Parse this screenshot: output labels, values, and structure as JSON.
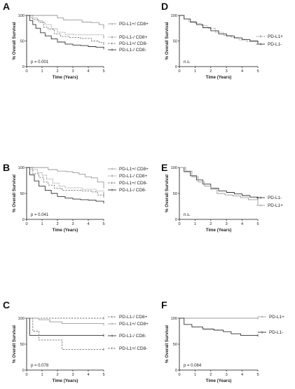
{
  "figure": {
    "panels": [
      {
        "label": "A",
        "stat": "p = 0.001"
      },
      {
        "label": "B",
        "stat": "p = 0.041"
      },
      {
        "label": "C",
        "stat": "p = 0.078"
      },
      {
        "label": "D",
        "stat": "n.s."
      },
      {
        "label": "E",
        "stat": "n.s."
      },
      {
        "label": "F",
        "stat": "p = 0.084"
      }
    ]
  },
  "chart_data": [
    {
      "panel": "A",
      "type": "line",
      "xlabel": "Time (Years)",
      "ylabel": "% Overall Survival",
      "xlim": [
        0,
        5
      ],
      "ylim": [
        0,
        100
      ],
      "xticks": [
        0,
        1,
        2,
        3,
        4,
        5
      ],
      "yticks": [
        0,
        50,
        100
      ],
      "annotation": "p = 0.001",
      "legend_placement": "right",
      "series": [
        {
          "name": "PD-L1+/ CD8+",
          "style": "solid-light",
          "points": [
            [
              0,
              100
            ],
            [
              1.5,
              100
            ],
            [
              2,
              95
            ],
            [
              2.4,
              91
            ],
            [
              3,
              91
            ],
            [
              3.6,
              87
            ],
            [
              4.2,
              86
            ],
            [
              4.7,
              82
            ],
            [
              5,
              76
            ]
          ]
        },
        {
          "name": "PD-L1-/ CD8+",
          "style": "dotted",
          "points": [
            [
              0,
              100
            ],
            [
              0.3,
              95
            ],
            [
              0.7,
              90
            ],
            [
              1,
              86
            ],
            [
              1.2,
              82
            ],
            [
              1.6,
              74
            ],
            [
              2,
              67
            ],
            [
              2.5,
              63
            ],
            [
              3,
              62
            ],
            [
              3.5,
              62
            ],
            [
              4,
              62
            ],
            [
              4.5,
              62
            ],
            [
              5,
              58
            ]
          ]
        },
        {
          "name": "PD-L1+/ CD8-",
          "style": "dashed",
          "points": [
            [
              0,
              100
            ],
            [
              0.4,
              92
            ],
            [
              0.8,
              87
            ],
            [
              1.1,
              77
            ],
            [
              1.4,
              73
            ],
            [
              1.8,
              64
            ],
            [
              2.2,
              59
            ],
            [
              2.8,
              57
            ],
            [
              3.5,
              55
            ],
            [
              4.2,
              50
            ],
            [
              4.7,
              47
            ],
            [
              5,
              45
            ]
          ]
        },
        {
          "name": "PD-L1-/ CD8-",
          "style": "solid",
          "points": [
            [
              0,
              100
            ],
            [
              0.2,
              90
            ],
            [
              0.4,
              82
            ],
            [
              0.6,
              75
            ],
            [
              0.9,
              66
            ],
            [
              1.2,
              60
            ],
            [
              1.6,
              54
            ],
            [
              2,
              48
            ],
            [
              2.5,
              44
            ],
            [
              3,
              42
            ],
            [
              3.5,
              41
            ],
            [
              4,
              39
            ],
            [
              4.5,
              38
            ],
            [
              5,
              36
            ]
          ]
        }
      ]
    },
    {
      "panel": "B",
      "type": "line",
      "xlabel": "Time (Years)",
      "ylabel": "% Overall Survival",
      "xlim": [
        0,
        5
      ],
      "ylim": [
        0,
        100
      ],
      "xticks": [
        0,
        1,
        2,
        3,
        4,
        5
      ],
      "yticks": [
        0,
        50,
        100
      ],
      "annotation": "p = 0.041",
      "legend_placement": "right",
      "series": [
        {
          "name": "PD-L1+/ CD8+",
          "style": "solid-light",
          "points": [
            [
              0,
              100
            ],
            [
              1,
              100
            ],
            [
              1.4,
              96
            ],
            [
              2,
              93
            ],
            [
              2.6,
              92
            ],
            [
              3,
              90
            ],
            [
              3.4,
              87
            ],
            [
              3.8,
              82
            ],
            [
              4.2,
              80
            ],
            [
              4.6,
              72
            ],
            [
              5,
              62
            ]
          ]
        },
        {
          "name": "PD-L1-/ CD8+",
          "style": "dotted",
          "points": [
            [
              0,
              100
            ],
            [
              0.3,
              96
            ],
            [
              0.7,
              90
            ],
            [
              1,
              85
            ],
            [
              1.3,
              78
            ],
            [
              1.7,
              70
            ],
            [
              2.1,
              64
            ],
            [
              2.5,
              61
            ],
            [
              3,
              61
            ],
            [
              3.6,
              58
            ],
            [
              4,
              58
            ],
            [
              4.5,
              55
            ],
            [
              5,
              50
            ]
          ]
        },
        {
          "name": "PD-L1+/ CD8-",
          "style": "dashed",
          "points": [
            [
              0,
              100
            ],
            [
              0.4,
              88
            ],
            [
              0.8,
              81
            ],
            [
              1.1,
              72
            ],
            [
              1.4,
              66
            ],
            [
              1.8,
              60
            ],
            [
              2.3,
              56
            ],
            [
              3,
              56
            ],
            [
              3.6,
              55
            ],
            [
              4.2,
              53
            ],
            [
              4.6,
              47
            ],
            [
              5,
              44
            ]
          ]
        },
        {
          "name": "PD-L1-/ CD8-",
          "style": "solid",
          "points": [
            [
              0,
              100
            ],
            [
              0.2,
              86
            ],
            [
              0.5,
              74
            ],
            [
              0.8,
              64
            ],
            [
              1.2,
              56
            ],
            [
              1.6,
              50
            ],
            [
              2,
              44
            ],
            [
              2.5,
              41
            ],
            [
              3,
              39
            ],
            [
              3.5,
              38
            ],
            [
              4,
              37
            ],
            [
              4.5,
              35
            ],
            [
              5,
              33
            ]
          ]
        }
      ]
    },
    {
      "panel": "C",
      "type": "line",
      "xlabel": "Time (Years)",
      "ylabel": "% Overall Survival",
      "xlim": [
        0,
        5
      ],
      "ylim": [
        0,
        100
      ],
      "xticks": [
        0,
        1,
        2,
        3,
        4,
        5
      ],
      "yticks": [
        0,
        50,
        100
      ],
      "annotation": "p = 0.078",
      "legend_placement": "right",
      "series": [
        {
          "name": "PD-L1-/ CD8+",
          "style": "dashed",
          "points": [
            [
              0,
              100
            ],
            [
              5,
              100
            ]
          ]
        },
        {
          "name": "PD-L1+/ CD8+",
          "style": "solid-light",
          "points": [
            [
              0,
              100
            ],
            [
              0.8,
              97
            ],
            [
              1.5,
              93
            ],
            [
              2.3,
              90
            ],
            [
              3,
              90
            ],
            [
              5,
              88
            ]
          ]
        },
        {
          "name": "PD-L1-/ CD8-",
          "style": "solid",
          "points": [
            [
              0,
              100
            ],
            [
              0.2,
              67
            ],
            [
              5,
              67
            ]
          ]
        },
        {
          "name": "PD-L1+/ CD8-",
          "style": "dashed",
          "points": [
            [
              0,
              100
            ],
            [
              0.4,
              75
            ],
            [
              0.8,
              58
            ],
            [
              2.2,
              58
            ],
            [
              2.3,
              40
            ],
            [
              5,
              40
            ]
          ]
        }
      ]
    },
    {
      "panel": "D",
      "type": "line",
      "xlabel": "Time (Years)",
      "ylabel": "% Overall Survival",
      "xlim": [
        0,
        5
      ],
      "ylim": [
        0,
        100
      ],
      "xticks": [
        0,
        1,
        2,
        3,
        4,
        5
      ],
      "yticks": [
        0,
        50,
        100
      ],
      "annotation": "n.s.",
      "legend_placement": "right",
      "series": [
        {
          "name": "PD-L1+",
          "style": "dotted",
          "points": [
            [
              0,
              100
            ],
            [
              0.3,
              93
            ],
            [
              0.6,
              88
            ],
            [
              1,
              84
            ],
            [
              1.4,
              80
            ],
            [
              1.8,
              75
            ],
            [
              2.3,
              67
            ],
            [
              2.8,
              61
            ],
            [
              3.3,
              57
            ],
            [
              3.8,
              52
            ],
            [
              4.3,
              49
            ],
            [
              5,
              46
            ]
          ]
        },
        {
          "name": "PD-L1-",
          "style": "solid",
          "points": [
            [
              0,
              100
            ],
            [
              0.3,
              93
            ],
            [
              0.7,
              87
            ],
            [
              1.1,
              82
            ],
            [
              1.5,
              76
            ],
            [
              2,
              70
            ],
            [
              2.5,
              64
            ],
            [
              3,
              60
            ],
            [
              3.5,
              56
            ],
            [
              4,
              53
            ],
            [
              4.5,
              50
            ],
            [
              5,
              48
            ]
          ]
        }
      ]
    },
    {
      "panel": "E",
      "type": "line",
      "xlabel": "Time (Years)",
      "ylabel": "% Overall Survival",
      "xlim": [
        0,
        5
      ],
      "ylim": [
        0,
        100
      ],
      "xticks": [
        0,
        1,
        2,
        3,
        4,
        5
      ],
      "yticks": [
        0,
        50,
        100
      ],
      "annotation": "n.s.",
      "legend_placement": "right",
      "series": [
        {
          "name": "PD-L1-",
          "style": "solid",
          "points": [
            [
              0,
              100
            ],
            [
              0.3,
              92
            ],
            [
              0.7,
              84
            ],
            [
              1.1,
              76
            ],
            [
              1.5,
              68
            ],
            [
              2,
              60
            ],
            [
              2.5,
              55
            ],
            [
              3,
              52
            ],
            [
              3.5,
              49
            ],
            [
              4,
              46
            ],
            [
              4.5,
              43
            ],
            [
              5,
              40
            ]
          ]
        },
        {
          "name": "PD-L1+",
          "style": "solid-light",
          "points": [
            [
              0,
              100
            ],
            [
              0.4,
              93
            ],
            [
              0.8,
              82
            ],
            [
              1.2,
              72
            ],
            [
              1.6,
              64
            ],
            [
              2,
              58
            ],
            [
              2.4,
              50
            ],
            [
              2.9,
              47
            ],
            [
              3.4,
              45
            ],
            [
              3.9,
              42
            ],
            [
              4.4,
              38
            ],
            [
              5,
              30
            ]
          ]
        }
      ]
    },
    {
      "panel": "F",
      "type": "line",
      "xlabel": "Time (Years)",
      "ylabel": "% Overall Survival",
      "xlim": [
        0,
        5
      ],
      "ylim": [
        0,
        100
      ],
      "xticks": [
        0,
        1,
        2,
        3,
        4,
        5
      ],
      "yticks": [
        0,
        50,
        100
      ],
      "annotation": "p = 0.084",
      "legend_placement": "right",
      "series": [
        {
          "name": "PD-L1+",
          "style": "solid-light",
          "points": [
            [
              0,
              100
            ],
            [
              5,
              100
            ]
          ]
        },
        {
          "name": "PD-L1-",
          "style": "solid",
          "points": [
            [
              0,
              100
            ],
            [
              0.3,
              88
            ],
            [
              0.8,
              83
            ],
            [
              1.5,
              79
            ],
            [
              2.2,
              77
            ],
            [
              2.8,
              74
            ],
            [
              3.3,
              70
            ],
            [
              3.9,
              67
            ],
            [
              5,
              67
            ]
          ]
        }
      ]
    }
  ]
}
